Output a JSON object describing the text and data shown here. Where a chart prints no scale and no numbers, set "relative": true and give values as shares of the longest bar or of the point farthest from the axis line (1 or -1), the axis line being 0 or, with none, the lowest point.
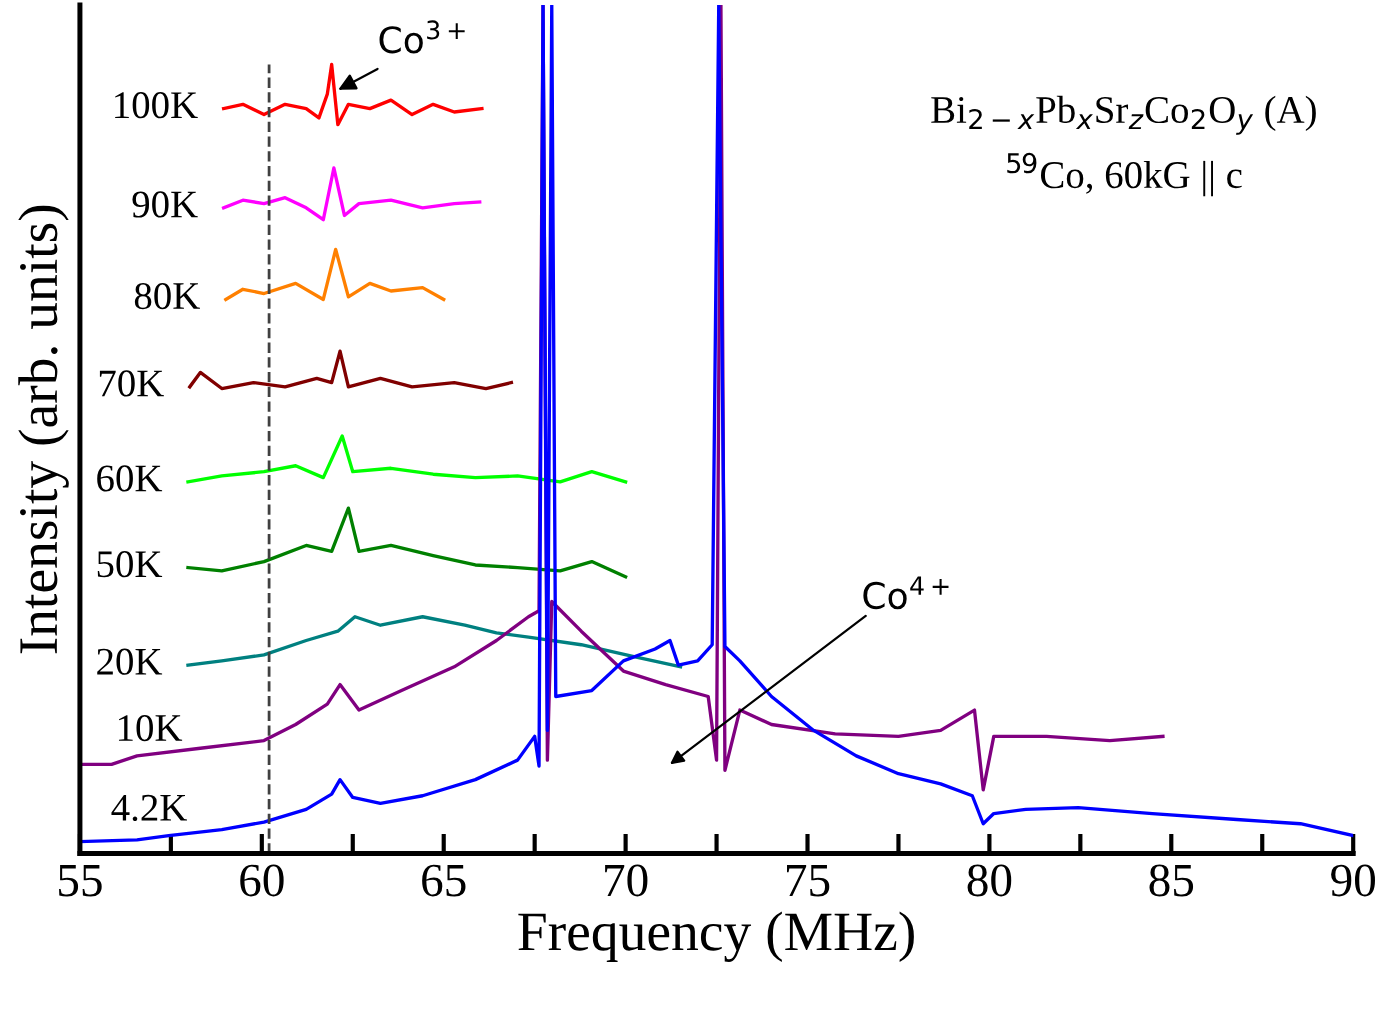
{
  "chart_data": {
    "type": "line",
    "relative": true,
    "xlabel": "Frequency (MHz)",
    "ylabel": "Intensity (arb. units)",
    "xlim": [
      55,
      90
    ],
    "xticks": [
      55,
      {
        "value": 57.5,
        "label": null
      },
      60,
      {
        "value": 62.5,
        "label": null
      },
      65,
      {
        "value": 67.5,
        "label": null
      },
      70,
      {
        "value": 72.5,
        "label": null
      },
      75,
      {
        "value": 77.5,
        "label": null
      },
      80,
      {
        "value": 82.5,
        "label": null
      },
      85,
      {
        "value": 87.5,
        "label": null
      },
      90
    ],
    "grid": false,
    "legend": false,
    "marker": "none",
    "line_style": "solid",
    "ref_lines": [
      {
        "axis": "x",
        "value": 60.2,
        "color": "#404040",
        "line_style": "dashed"
      }
    ],
    "annotations": [
      "Bi$_{2−x}$Pb$_{x}$Sr$_{z}$Co$_{2}$O$_{y}$ (A)",
      "$^{59}$Co, 60kG || c",
      {
        "text": "Co$^{3+}$",
        "x": 62.1,
        "y": 0.9
      },
      "Co$^{4+}$"
    ],
    "series": [
      {
        "name": "100K",
        "color": "#ff0000",
        "x": [
          58.95,
          59.48,
          60.06,
          60.64,
          61.22,
          61.57,
          61.8,
          61.92,
          62.09,
          62.38,
          62.97,
          63.55,
          64.13,
          64.71,
          65.29,
          66.05
        ],
        "values": [
          0.878,
          0.883,
          0.871,
          0.883,
          0.878,
          0.867,
          0.895,
          0.93,
          0.859,
          0.883,
          0.878,
          0.888,
          0.871,
          0.883,
          0.874,
          0.878
        ]
      },
      {
        "name": "90K",
        "color": "#ff00ff",
        "x": [
          58.95,
          59.48,
          60.06,
          60.64,
          61.22,
          61.69,
          61.98,
          62.27,
          62.67,
          63.55,
          64.42,
          65.29,
          65.99
        ],
        "values": [
          0.761,
          0.77,
          0.766,
          0.773,
          0.761,
          0.747,
          0.808,
          0.752,
          0.766,
          0.77,
          0.761,
          0.766,
          0.768
        ]
      },
      {
        "name": "80K",
        "color": "#ff8000",
        "x": [
          59.01,
          59.48,
          60.06,
          60.93,
          61.69,
          62.03,
          62.38,
          62.97,
          63.55,
          64.42,
          65.0
        ],
        "values": [
          0.653,
          0.665,
          0.66,
          0.672,
          0.653,
          0.712,
          0.656,
          0.672,
          0.663,
          0.667,
          0.653
        ]
      },
      {
        "name": "70K",
        "color": "#800000",
        "x": [
          58.02,
          58.31,
          58.9,
          59.77,
          60.64,
          61.51,
          61.92,
          62.15,
          62.38,
          63.26,
          64.13,
          65.29,
          66.16,
          66.86
        ],
        "values": [
          0.55,
          0.567,
          0.548,
          0.555,
          0.55,
          0.56,
          0.555,
          0.592,
          0.55,
          0.56,
          0.55,
          0.555,
          0.548,
          0.555
        ]
      },
      {
        "name": "60K",
        "color": "#00ff00",
        "x": [
          57.97,
          58.9,
          60.06,
          60.93,
          61.69,
          62.21,
          62.5,
          63.55,
          64.71,
          65.87,
          67.03,
          68.2,
          69.07,
          70.0
        ],
        "values": [
          0.438,
          0.445,
          0.45,
          0.457,
          0.443,
          0.492,
          0.45,
          0.454,
          0.447,
          0.443,
          0.445,
          0.438,
          0.45,
          0.438
        ]
      },
      {
        "name": "50K",
        "color": "#008000",
        "x": [
          57.97,
          58.9,
          60.06,
          61.22,
          61.92,
          62.38,
          62.67,
          63.55,
          64.71,
          65.87,
          67.03,
          68.2,
          69.07,
          70.0
        ],
        "values": [
          0.337,
          0.333,
          0.344,
          0.363,
          0.356,
          0.407,
          0.356,
          0.363,
          0.351,
          0.34,
          0.337,
          0.333,
          0.344,
          0.326
        ]
      },
      {
        "name": "20K",
        "color": "#008080",
        "x": [
          57.97,
          58.9,
          60.06,
          61.22,
          62.09,
          62.56,
          63.26,
          64.42,
          65.58,
          66.45,
          67.33,
          68.78,
          70.23,
          71.51
        ],
        "values": [
          0.222,
          0.227,
          0.234,
          0.251,
          0.262,
          0.279,
          0.269,
          0.279,
          0.269,
          0.26,
          0.255,
          0.246,
          0.232,
          0.22
        ]
      },
      {
        "name": "10K",
        "color": "#800080",
        "x": [
          55.0,
          55.87,
          56.57,
          58.31,
          60.06,
          60.93,
          61.8,
          62.15,
          62.67,
          63.84,
          65.29,
          66.45,
          67.33,
          67.62,
          67.73,
          67.85,
          67.97,
          68.78,
          69.94,
          71.1,
          72.27,
          72.5,
          72.62,
          72.73,
          73.14,
          74.01,
          75.76,
          77.5,
          78.66,
          79.59,
          79.83,
          80.12,
          81.57,
          83.31,
          84.77
        ],
        "values": [
          0.105,
          0.105,
          0.115,
          0.124,
          0.133,
          0.152,
          0.176,
          0.199,
          0.169,
          0.192,
          0.22,
          0.251,
          0.279,
          0.286,
          1.0,
          0.11,
          0.297,
          0.262,
          0.215,
          0.199,
          0.185,
          0.11,
          1.0,
          0.098,
          0.169,
          0.152,
          0.141,
          0.138,
          0.145,
          0.169,
          0.075,
          0.138,
          0.138,
          0.133,
          0.138
        ]
      },
      {
        "name": "4.2K",
        "color": "#0000ff",
        "x": [
          55.0,
          56.57,
          57.44,
          58.9,
          60.06,
          61.22,
          61.92,
          62.15,
          62.5,
          63.26,
          64.42,
          65.87,
          67.03,
          67.5,
          67.62,
          67.73,
          67.85,
          67.97,
          68.08,
          69.07,
          69.94,
          70.81,
          71.22,
          71.45,
          71.98,
          72.38,
          72.56,
          72.73,
          73.14,
          74.01,
          75.17,
          76.34,
          77.5,
          78.66,
          79.53,
          79.83,
          80.12,
          81.0,
          82.44,
          84.48,
          86.8,
          88.55,
          90.0
        ],
        "values": [
          0.014,
          0.016,
          0.021,
          0.028,
          0.037,
          0.052,
          0.07,
          0.087,
          0.066,
          0.059,
          0.068,
          0.087,
          0.11,
          0.138,
          0.103,
          1.0,
          0.145,
          1.0,
          0.185,
          0.192,
          0.227,
          0.241,
          0.251,
          0.222,
          0.227,
          0.246,
          1.0,
          0.244,
          0.227,
          0.185,
          0.145,
          0.115,
          0.094,
          0.082,
          0.068,
          0.035,
          0.047,
          0.052,
          0.054,
          0.047,
          0.04,
          0.035,
          0.021
        ]
      }
    ]
  }
}
